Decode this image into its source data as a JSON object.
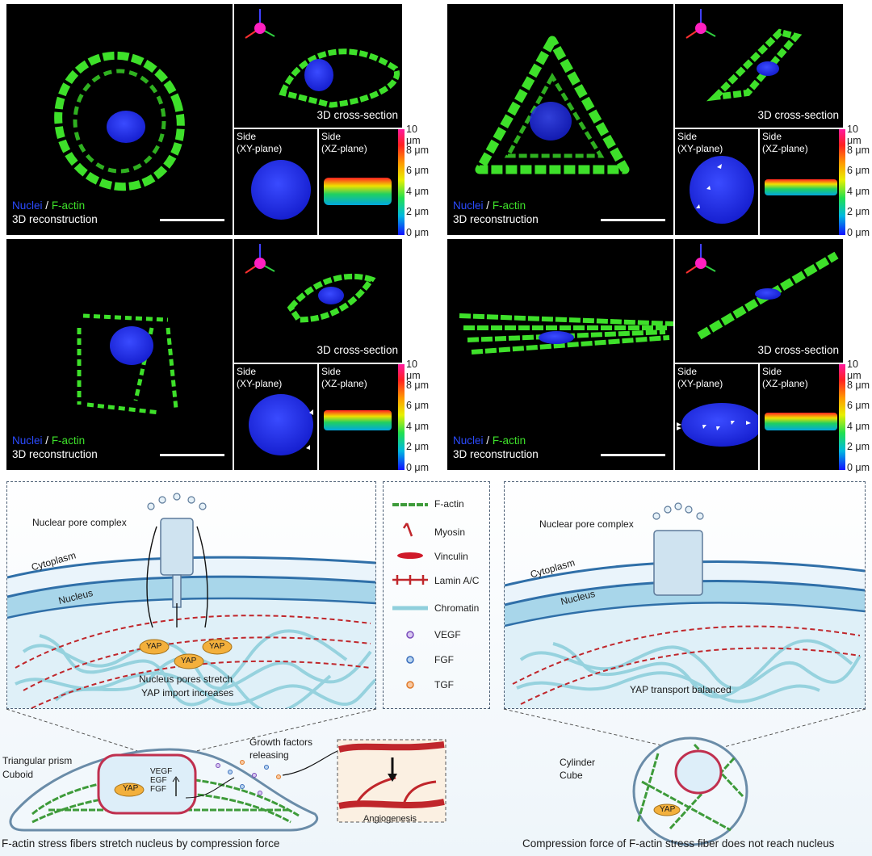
{
  "figure": {
    "labels": {
      "nuclei": "Nuclei",
      "slash": "/",
      "factin": "F-actin",
      "reconstruction": "3D reconstruction",
      "cross_section": "3D cross-section",
      "side": "Side",
      "xy_plane": "(XY-plane)",
      "xz_plane": "(XZ-plane)"
    },
    "colorbar_ticks": [
      "10 μm",
      "8 μm",
      "6 μm",
      "4 μm",
      "2 μm",
      "0 μm"
    ],
    "colors": {
      "factin": "#3ee02a",
      "nucleus": "#2233ff",
      "lamin": "#c0262b",
      "chromatin": "#8fcfdc"
    },
    "legend": {
      "factin": "F-actin",
      "myosin": "Myosin",
      "vinculin": "Vinculin",
      "lamin": "Lamin A/C",
      "chromatin": "Chromatin",
      "vegf": "VEGF",
      "fgf": "FGF",
      "tgf": "TGF"
    },
    "left_diagram": {
      "npc": "Nuclear pore complex",
      "cytoplasm": "Cytoplasm",
      "nucleus": "Nucleus",
      "yap": "YAP",
      "pores_stretch": "Nucleus pores stretch",
      "import_increases": "YAP import increases",
      "shape1": "Triangular prism",
      "shape2": "Cuboid",
      "growth1": "Growth factors",
      "growth2": "releasing",
      "vegf": "VEGF",
      "egf": "EGF",
      "fgf": "FGF",
      "angiogenesis": "Angiogenesis",
      "caption": "F-actin stress fibers stretch nucleus by  compression force"
    },
    "right_diagram": {
      "npc": "Nuclear pore complex",
      "cytoplasm": "Cytoplasm",
      "nucleus": "Nucleus",
      "balanced": "YAP transport balanced",
      "shape1": "Cylinder",
      "shape2": "Cube",
      "yap": "YAP",
      "caption": "Compression force of F-actin stress fiber does not reach nucleus"
    }
  }
}
